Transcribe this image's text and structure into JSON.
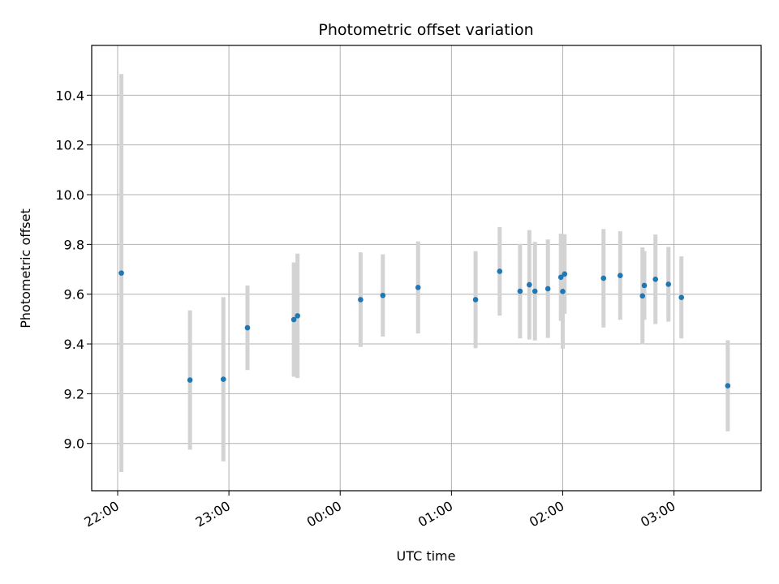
{
  "chart_data": {
    "type": "scatter",
    "title": "Photometric offset variation",
    "xlabel": "UTC time",
    "ylabel": "Photometric offset",
    "x_axis_type": "time",
    "x_range": [
      "21:46",
      "03:47"
    ],
    "ylim": [
      8.81,
      10.6
    ],
    "x_ticks": [
      "22:00",
      "23:00",
      "00:00",
      "01:00",
      "02:00",
      "03:00"
    ],
    "y_ticks": [
      9.0,
      9.2,
      9.4,
      9.6,
      9.8,
      10.0,
      10.2,
      10.4
    ],
    "y_tick_labels": [
      "9.0",
      "9.2",
      "9.4",
      "9.6",
      "9.8",
      "10.0",
      "10.2",
      "10.4"
    ],
    "grid": true,
    "colors": {
      "point": "#1f77b4",
      "errorbar": "#d3d3d3",
      "grid": "#b0b0b0"
    },
    "points": [
      {
        "x": "22:02",
        "y": 9.685,
        "yerr": 0.8
      },
      {
        "x": "22:39",
        "y": 9.255,
        "yerr": 0.28
      },
      {
        "x": "22:57",
        "y": 9.258,
        "yerr": 0.33
      },
      {
        "x": "23:10",
        "y": 9.465,
        "yerr": 0.17
      },
      {
        "x": "23:35",
        "y": 9.498,
        "yerr": 0.23
      },
      {
        "x": "23:37",
        "y": 9.513,
        "yerr": 0.25
      },
      {
        "x": "00:11",
        "y": 9.578,
        "yerr": 0.19
      },
      {
        "x": "00:23",
        "y": 9.595,
        "yerr": 0.165
      },
      {
        "x": "00:42",
        "y": 9.627,
        "yerr": 0.185
      },
      {
        "x": "01:13",
        "y": 9.578,
        "yerr": 0.195
      },
      {
        "x": "01:26",
        "y": 9.692,
        "yerr": 0.178
      },
      {
        "x": "01:37",
        "y": 9.612,
        "yerr": 0.19
      },
      {
        "x": "01:42",
        "y": 9.638,
        "yerr": 0.22
      },
      {
        "x": "01:45",
        "y": 9.612,
        "yerr": 0.198
      },
      {
        "x": "01:52",
        "y": 9.622,
        "yerr": 0.198
      },
      {
        "x": "01:59",
        "y": 9.668,
        "yerr": 0.175
      },
      {
        "x": "01:60",
        "y": 9.611,
        "yerr": 0.23
      },
      {
        "x": "02:01",
        "y": 9.681,
        "yerr": 0.16
      },
      {
        "x": "02:22",
        "y": 9.664,
        "yerr": 0.198
      },
      {
        "x": "02:31",
        "y": 9.675,
        "yerr": 0.178
      },
      {
        "x": "02:43",
        "y": 9.593,
        "yerr": 0.195
      },
      {
        "x": "02:44",
        "y": 9.635,
        "yerr": 0.138
      },
      {
        "x": "02:50",
        "y": 9.66,
        "yerr": 0.18
      },
      {
        "x": "02:57",
        "y": 9.64,
        "yerr": 0.15
      },
      {
        "x": "03:04",
        "y": 9.587,
        "yerr": 0.165
      },
      {
        "x": "03:29",
        "y": 9.232,
        "yerr": 0.183
      }
    ]
  }
}
